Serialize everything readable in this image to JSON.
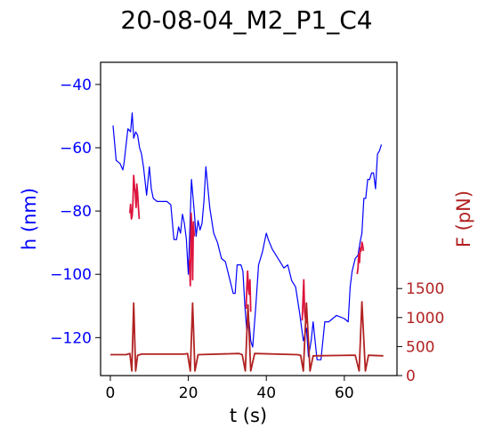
{
  "chart_data": {
    "type": "line",
    "title": "20-08-04_M2_P1_C4",
    "xlabel": "t (s)",
    "xlim": [
      -2.5,
      73.5
    ],
    "xticks": [
      0,
      20,
      40,
      60
    ],
    "y_left": {
      "label": "h (nm)",
      "color": "#0000ff",
      "lim": [
        -132,
        -33
      ],
      "ticks": [
        -40,
        -60,
        -80,
        -100,
        -120
      ]
    },
    "y_right": {
      "label": "F (pN)",
      "color": "#b22222",
      "lim": [
        0,
        5400
      ],
      "ticks": [
        0,
        500,
        1000,
        1500
      ]
    },
    "series": [
      {
        "axis": "left",
        "color": "#0000ff",
        "x": [
          0.7,
          1.5,
          2.5,
          3.2,
          3.5,
          4.5,
          5.2,
          5.6,
          6.0,
          6.5,
          7.0,
          7.5,
          8.0,
          8.5,
          9.3,
          10.0,
          10.5,
          11.0,
          12.0,
          13.0,
          14.5,
          15.5,
          16.3,
          17.0,
          17.5,
          18.0,
          18.5,
          19.0,
          19.5,
          20.0,
          20.8,
          21.5,
          22.0,
          22.5,
          23.0,
          23.5,
          24.0,
          24.5,
          25.5,
          26.5,
          27.5,
          28.5,
          29.5,
          30.5,
          31.5,
          32.0,
          32.5,
          33.5,
          34.0,
          34.5,
          35.0,
          35.6,
          36.0,
          36.5,
          37.3,
          38.0,
          39.0,
          40.0,
          40.5,
          41.5,
          43.0,
          44.5,
          45.5,
          46.5,
          47.5,
          48.5,
          49.5,
          50.3,
          50.8,
          51.5,
          52.0,
          52.5,
          53.0,
          54.0,
          55.0,
          56.0,
          58.0,
          60.0,
          61.0,
          61.5,
          62.0,
          62.8,
          63.5,
          64.0,
          64.5,
          65.0,
          65.5,
          66.0,
          66.5,
          67.0,
          67.5,
          68.0,
          68.5,
          69.0,
          69.5
        ],
        "y": [
          -53,
          -64,
          -65,
          -67,
          -65,
          -54,
          -55,
          -49,
          -57,
          -55,
          -56,
          -60,
          -62,
          -66,
          -75,
          -66,
          -73,
          -76,
          -77,
          -77,
          -77,
          -78,
          -89,
          -89,
          -85,
          -87,
          -81,
          -84,
          -89,
          -100,
          -70,
          -80,
          -88,
          -83,
          -86,
          -84,
          -77,
          -66,
          -79,
          -87,
          -90,
          -95,
          -96,
          -101,
          -106,
          -106,
          -97,
          -97,
          -99,
          -110,
          -118,
          -115,
          -121,
          -123,
          -110,
          -97,
          -93,
          -87,
          -89,
          -92,
          -95,
          -98,
          -97,
          -102,
          -104,
          -112,
          -121,
          -117,
          -126,
          -121,
          -115,
          -121,
          -127,
          -127,
          -115,
          -115,
          -113,
          -114,
          -115,
          -104,
          -99,
          -95,
          -94,
          -90,
          -87,
          -76,
          -76,
          -70,
          -70,
          -68,
          -68,
          -73,
          -62,
          -61,
          -59
        ]
      },
      {
        "axis": "right",
        "color": "#dc143c",
        "x": [
          5.0,
          5.2,
          5.4,
          5.6,
          5.8,
          6.0,
          6.2,
          6.4,
          6.6,
          6.8,
          7.0,
          7.2,
          7.4
        ],
        "y": [
          2800,
          2950,
          2700,
          2750,
          3000,
          3450,
          3250,
          3150,
          2900,
          3300,
          3150,
          2900,
          2700
        ]
      },
      {
        "axis": "right",
        "color": "#dc143c",
        "x": [
          20.3,
          20.5,
          20.7,
          20.9,
          21.1,
          21.3,
          21.5
        ],
        "y": [
          2000,
          1550,
          2800,
          2550,
          1650,
          2650,
          2400
        ]
      },
      {
        "axis": "right",
        "color": "#dc143c",
        "x": [
          34.8,
          35.0,
          35.2,
          35.4,
          35.6,
          35.8,
          36.0
        ],
        "y": [
          1150,
          1500,
          1800,
          1500,
          1400,
          1650,
          1100
        ]
      },
      {
        "axis": "right",
        "color": "#dc143c",
        "x": [
          49.2,
          49.4,
          49.6,
          49.8,
          50.0,
          50.2
        ],
        "y": [
          950,
          1300,
          1650,
          1100,
          1000,
          900
        ]
      },
      {
        "axis": "right",
        "color": "#dc143c",
        "x": [
          63.3,
          63.5,
          63.7,
          63.9,
          64.1,
          64.3,
          64.5,
          64.7,
          64.9
        ],
        "y": [
          1750,
          1850,
          2100,
          1950,
          2200,
          2150,
          2300,
          2250,
          2150
        ]
      },
      {
        "axis": "right",
        "color": "#b22222",
        "x": [
          0.0,
          4.0,
          5.0,
          5.5,
          6.0,
          6.5,
          7.0,
          8.0,
          19.0,
          19.8,
          20.5,
          21.1,
          21.7,
          22.5,
          33.0,
          33.8,
          34.6,
          35.3,
          36.0,
          37.0,
          48.0,
          48.8,
          49.5,
          50.3,
          51.2,
          52.0,
          62.0,
          62.8,
          63.8,
          64.5,
          65.4,
          66.2,
          70.0
        ],
        "y": [
          360,
          360,
          380,
          80,
          1250,
          80,
          350,
          370,
          370,
          380,
          80,
          1250,
          80,
          360,
          380,
          360,
          80,
          1220,
          80,
          380,
          360,
          350,
          80,
          1250,
          80,
          340,
          350,
          350,
          80,
          1270,
          80,
          350,
          340
        ]
      }
    ]
  }
}
